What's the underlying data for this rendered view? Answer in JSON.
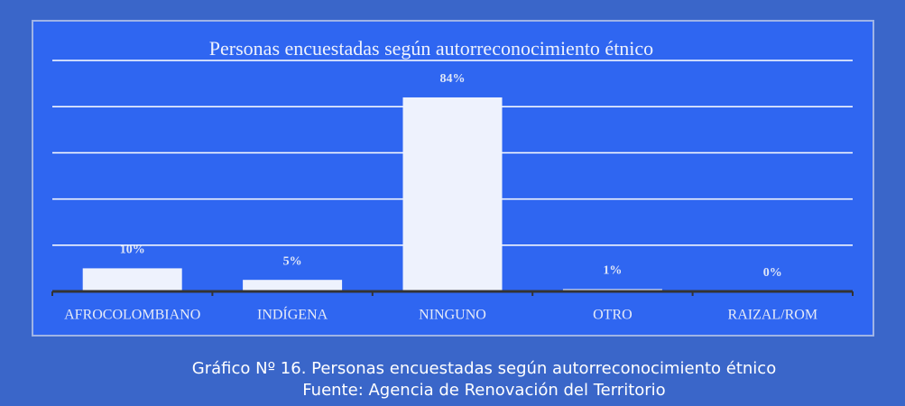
{
  "chart_data": {
    "type": "bar",
    "title": "Personas encuestadas según autorreconocimiento  étnico",
    "categories": [
      "AFROCOLOMBIANO",
      "INDÍGENA",
      "NINGUNO",
      "OTRO",
      "RAIZAL/ROM"
    ],
    "values": [
      10,
      5,
      84,
      1,
      0
    ],
    "value_labels": [
      "10%",
      "5%",
      "84%",
      "1%",
      "0%"
    ],
    "color": "#eef2fd",
    "ylim": [
      0,
      100
    ],
    "yticks": [
      0,
      20,
      40,
      60,
      80,
      100
    ],
    "grid": true
  },
  "caption": {
    "line1": "Gráfico Nº 16. Personas encuestadas según autorreconocimiento étnico",
    "line2": "Fuente: Agencia de Renovación del Territorio"
  }
}
